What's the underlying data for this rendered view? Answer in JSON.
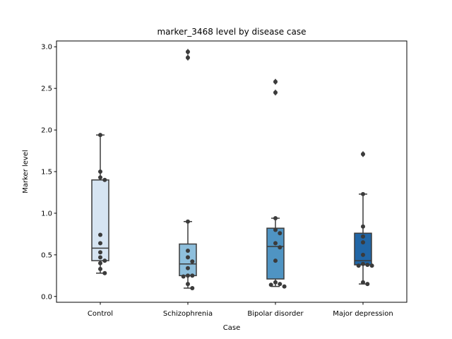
{
  "chart_data": {
    "type": "box",
    "title": "marker_3468 level by disease case",
    "xlabel": "Case",
    "ylabel": "Marker level",
    "ylim": [
      -0.07,
      3.07
    ],
    "yticks": [
      "0.0",
      "0.5",
      "1.0",
      "1.5",
      "2.0",
      "2.5",
      "3.0"
    ],
    "yticks_values": [
      0.0,
      0.5,
      1.0,
      1.5,
      2.0,
      2.5,
      3.0
    ],
    "grid": false,
    "categories": [
      "Control",
      "Schizophrenia",
      "Bipolar disorder",
      "Major depression"
    ],
    "colors": [
      "#d6e4f2",
      "#8ebfdc",
      "#4f94c3",
      "#2166a6"
    ],
    "boxes": [
      {
        "q1": 0.43,
        "median": 0.58,
        "q3": 1.4,
        "whisker_low": 0.28,
        "whisker_high": 1.94,
        "outliers": []
      },
      {
        "q1": 0.25,
        "median": 0.39,
        "q3": 0.63,
        "whisker_low": 0.1,
        "whisker_high": 0.9,
        "outliers": [
          2.94,
          2.87
        ]
      },
      {
        "q1": 0.21,
        "median": 0.6,
        "q3": 0.82,
        "whisker_low": 0.12,
        "whisker_high": 0.94,
        "outliers": [
          2.58,
          2.45
        ]
      },
      {
        "q1": 0.38,
        "median": 0.43,
        "q3": 0.76,
        "whisker_low": 0.15,
        "whisker_high": 1.23,
        "outliers": [
          1.71
        ]
      }
    ],
    "points": [
      [
        1.94,
        1.5,
        1.43,
        1.4,
        0.74,
        0.64,
        0.53,
        0.47,
        0.43,
        0.4,
        0.33,
        0.28
      ],
      [
        2.94,
        2.87,
        0.9,
        0.55,
        0.47,
        0.42,
        0.34,
        0.25,
        0.25,
        0.24,
        0.15,
        0.1
      ],
      [
        2.58,
        2.45,
        0.94,
        0.8,
        0.76,
        0.64,
        0.59,
        0.43,
        0.17,
        0.15,
        0.14,
        0.12
      ],
      [
        1.71,
        1.23,
        0.84,
        0.72,
        0.65,
        0.5,
        0.39,
        0.38,
        0.37,
        0.37,
        0.17,
        0.15
      ]
    ],
    "point_color": "#3b3b3b"
  }
}
